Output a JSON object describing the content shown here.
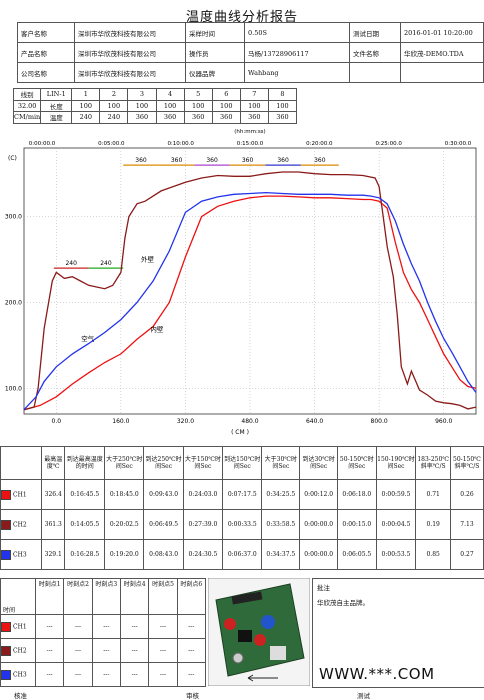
{
  "title": "温度曲线分析报告",
  "header": {
    "rows": [
      [
        {
          "k": "客户名称",
          "v": "深圳市华欣茂科技有限公司"
        },
        {
          "k": "采样时间",
          "v": "0.50S"
        },
        {
          "k": "测试日期",
          "v": "2016-01-01 10:20:00"
        }
      ],
      [
        {
          "k": "产品名称",
          "v": "深圳市华欣茂科技有限公司"
        },
        {
          "k": "操作员",
          "v": "马杨/13728906117"
        },
        {
          "k": "文件名称",
          "v": "华欣茂-DEMO.TDA"
        }
      ],
      [
        {
          "k": "公司名称",
          "v": "深圳市华欣茂科技有限公司"
        },
        {
          "k": "仪器品牌",
          "v": "Wahbang"
        },
        {
          "k": "",
          "v": ""
        }
      ]
    ]
  },
  "zones": {
    "line_label": "线别",
    "line_value": "LIN-1",
    "zone_numbers": [
      "1",
      "2",
      "3",
      "4",
      "5",
      "6",
      "7",
      "8"
    ],
    "speed_value": "32.00",
    "speed_unit": "CM/min",
    "length_label": "长度",
    "temp_label": "温度",
    "lengths": [
      "100",
      "100",
      "100",
      "100",
      "100",
      "100",
      "100",
      "100"
    ],
    "temps": [
      "240",
      "240",
      "360",
      "360",
      "360",
      "360",
      "360",
      "360"
    ]
  },
  "chart_data": {
    "type": "line",
    "title": "",
    "top_axis_label": "(hh:mm:ss)",
    "top_ticks": [
      "0:00:00.0",
      "0:05:00.0",
      "0:10:00.0",
      "0:15:00.0",
      "0:20:00.0",
      "0:25:00.0",
      "0:30:00.0"
    ],
    "xlabel": "( CM )",
    "ylabel": "(C)",
    "xlim": [
      -80,
      1040
    ],
    "ylim": [
      70,
      380
    ],
    "x_ticks": [
      "0.0",
      "160.0",
      "320.0",
      "480.0",
      "640.0",
      "800.0",
      "960.0"
    ],
    "y_ticks": [
      "100.0",
      "200.0",
      "300.0"
    ],
    "setpoints": [
      {
        "label": "240",
        "x": [
          -6,
          80
        ],
        "y": 240,
        "color": "#cc2222"
      },
      {
        "label": "240",
        "x": [
          80,
          166
        ],
        "y": 240,
        "color": "#22aa22"
      },
      {
        "label": "360",
        "x": [
          166,
          254
        ],
        "y": 360,
        "color": "#dd8800"
      },
      {
        "label": "360",
        "x": [
          254,
          342
        ],
        "y": 360,
        "color": "#dd8800"
      },
      {
        "label": "360",
        "x": [
          342,
          430
        ],
        "y": 360,
        "color": "#aa44cc"
      },
      {
        "label": "360",
        "x": [
          430,
          518
        ],
        "y": 360,
        "color": "#dd8800"
      },
      {
        "label": "360",
        "x": [
          518,
          606
        ],
        "y": 360,
        "color": "#3333cc"
      },
      {
        "label": "360",
        "x": [
          606,
          700
        ],
        "y": 360,
        "color": "#dd8800"
      }
    ],
    "annotations": [
      {
        "text": "外壁",
        "x": 210,
        "y": 248
      },
      {
        "text": "内壁",
        "x": 233,
        "y": 166
      },
      {
        "text": "空气",
        "x": 62,
        "y": 155
      }
    ],
    "series": [
      {
        "name": "CH1",
        "color": "#ee1111",
        "x": [
          -80,
          -40,
          0,
          40,
          80,
          120,
          160,
          200,
          240,
          280,
          320,
          360,
          400,
          440,
          480,
          520,
          560,
          600,
          640,
          680,
          720,
          760,
          780,
          800,
          820,
          840,
          860,
          880,
          900,
          920,
          940,
          960,
          980,
          1000,
          1020,
          1040
        ],
        "y": [
          75,
          80,
          90,
          105,
          118,
          130,
          140,
          157,
          172,
          200,
          253,
          300,
          312,
          318,
          322,
          324,
          324,
          323,
          322,
          322,
          321,
          320,
          320,
          318,
          310,
          270,
          235,
          215,
          200,
          180,
          160,
          140,
          125,
          110,
          102,
          100
        ]
      },
      {
        "name": "CH2",
        "color": "#8b1a1a",
        "x": [
          -80,
          -55,
          -45,
          -30,
          -10,
          0,
          20,
          40,
          60,
          80,
          100,
          120,
          140,
          160,
          170,
          180,
          200,
          220,
          260,
          320,
          360,
          400,
          440,
          480,
          520,
          560,
          600,
          640,
          680,
          720,
          760,
          790,
          800,
          810,
          820,
          835,
          845,
          855,
          870,
          880,
          900,
          920,
          940,
          960,
          980,
          1000,
          1020,
          1040
        ],
        "y": [
          75,
          78,
          100,
          170,
          225,
          235,
          228,
          230,
          225,
          220,
          218,
          216,
          220,
          235,
          275,
          300,
          315,
          318,
          330,
          340,
          345,
          348,
          347,
          347,
          350,
          352,
          352,
          350,
          349,
          349,
          348,
          345,
          335,
          300,
          265,
          230,
          185,
          125,
          105,
          120,
          98,
          92,
          85,
          83,
          82,
          80,
          76,
          78
        ]
      },
      {
        "name": "CH3",
        "color": "#2233ee",
        "x": [
          -80,
          -50,
          -30,
          0,
          40,
          80,
          120,
          160,
          200,
          240,
          280,
          320,
          360,
          400,
          440,
          480,
          520,
          560,
          600,
          640,
          680,
          720,
          760,
          780,
          800,
          820,
          840,
          860,
          880,
          900,
          920,
          940,
          960,
          980,
          1000,
          1020,
          1040
        ],
        "y": [
          75,
          90,
          108,
          125,
          140,
          152,
          165,
          180,
          200,
          225,
          260,
          305,
          318,
          323,
          326,
          327,
          328,
          327,
          326,
          326,
          326,
          325,
          325,
          324,
          322,
          315,
          295,
          268,
          245,
          225,
          200,
          178,
          158,
          142,
          125,
          108,
          95
        ]
      }
    ]
  },
  "stats": {
    "headers": [
      "",
      "最高温度℃",
      "到达最高温度的时间",
      "大于250℃时间Sec",
      "到达250℃时间Sec",
      "大于150℃时间Sec",
      "到达150℃时间Sec",
      "大于30℃时间Sec",
      "到达30℃时间Sec",
      "50-150℃时间Sec",
      "150-190℃时间Sec",
      "183-250℃斜率℃/S",
      "50-150℃斜率℃/S"
    ],
    "rows": [
      {
        "name": "CH1",
        "color": "#ee1111",
        "values": [
          "326.4",
          "0:16:45.5",
          "0:18:45.0",
          "0:09:43.0",
          "0:24:03.0",
          "0:07:17.5",
          "0:34:25.5",
          "0:00:12.0",
          "0:06:18.0",
          "0:00:59.5",
          "0.71",
          "0.26"
        ]
      },
      {
        "name": "CH2",
        "color": "#8b1a1a",
        "values": [
          "361.3",
          "0:14:05.5",
          "0:20:02.5",
          "0:06:49.5",
          "0:27:39.0",
          "0:00:33.5",
          "0:33:58.5",
          "0:00:00.0",
          "0:00:15.0",
          "0:00:04.5",
          "0.19",
          "7.13"
        ]
      },
      {
        "name": "CH3",
        "color": "#2233ee",
        "values": [
          "329.1",
          "0:16:28.5",
          "0:19:20.0",
          "0:08:43.0",
          "0:24:30.5",
          "0:06:37.0",
          "0:34:37.5",
          "0:00:00.0",
          "0:06:05.5",
          "0:00:53.5",
          "0.85",
          "0.27"
        ]
      }
    ]
  },
  "bottom": {
    "time_label": "时间",
    "time_points": [
      "时刻点1",
      "时刻点2",
      "时刻点3",
      "时刻点4",
      "时刻点5",
      "时刻点6"
    ],
    "rows": [
      {
        "name": "CH1",
        "color": "#ee1111",
        "values": [
          "---",
          "---",
          "---",
          "---",
          "---",
          "---"
        ]
      },
      {
        "name": "CH2",
        "color": "#8b1a1a",
        "values": [
          "---",
          "---",
          "---",
          "---",
          "---",
          "---"
        ]
      },
      {
        "name": "CH3",
        "color": "#2233ee",
        "values": [
          "---",
          "---",
          "---",
          "---",
          "---",
          "---"
        ]
      }
    ],
    "remark_label": "批注",
    "remark_text": "华欣茂自主品牌。",
    "watermark": "WWW.***.COM"
  },
  "footer": {
    "approve": "核准",
    "review": "审核",
    "test": "测试"
  }
}
